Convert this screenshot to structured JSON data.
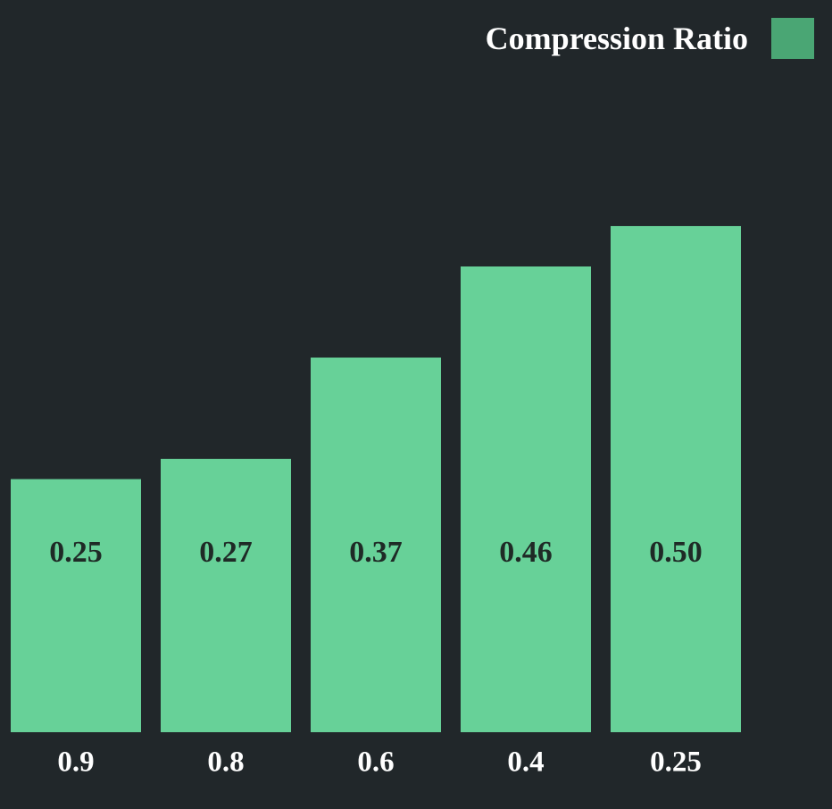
{
  "chart_data": {
    "type": "bar",
    "categories": [
      "0.9",
      "0.8",
      "0.6",
      "0.4",
      "0.25"
    ],
    "series": [
      {
        "name": "Compression Ratio",
        "values": [
          0.25,
          0.27,
          0.37,
          0.46,
          0.5
        ]
      }
    ],
    "value_labels": [
      "0.25",
      "0.27",
      "0.37",
      "0.46",
      "0.50"
    ],
    "ylim": [
      0,
      0.665
    ],
    "grid": false,
    "legend_position": "top-right",
    "colors": {
      "background": "#21272a",
      "bar": "#67d198",
      "legend_swatch": "#4aa674",
      "bar_label_text": "#1f2a26",
      "tick_text": "#ffffff"
    }
  }
}
